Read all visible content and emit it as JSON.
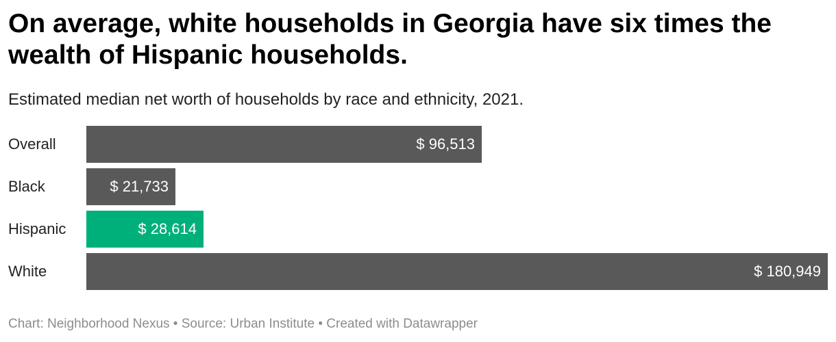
{
  "header": {
    "title": "On average, white households in Georgia have six times the wealth of Hispanic households.",
    "subtitle": "Estimated median net worth of households by race and ethnicity, 2021."
  },
  "chart_data": {
    "type": "bar",
    "orientation": "horizontal",
    "title": "On average, white households in Georgia have six times the wealth of Hispanic households.",
    "subtitle": "Estimated median net worth of households by race and ethnicity, 2021.",
    "categories": [
      "Overall",
      "Black",
      "Hispanic",
      "White"
    ],
    "values": [
      96513,
      21733,
      28614,
      180949
    ],
    "value_labels": [
      "$ 96,513",
      "$ 21,733",
      "$ 28,614",
      "$ 180,949"
    ],
    "colors": [
      "#595959",
      "#595959",
      "#00b07a",
      "#595959"
    ],
    "xlim": [
      0,
      180949
    ],
    "grid": false,
    "legend": "none"
  },
  "footer": {
    "text": "Chart: Neighborhood Nexus • Source: Urban Institute • Created with Datawrapper"
  }
}
